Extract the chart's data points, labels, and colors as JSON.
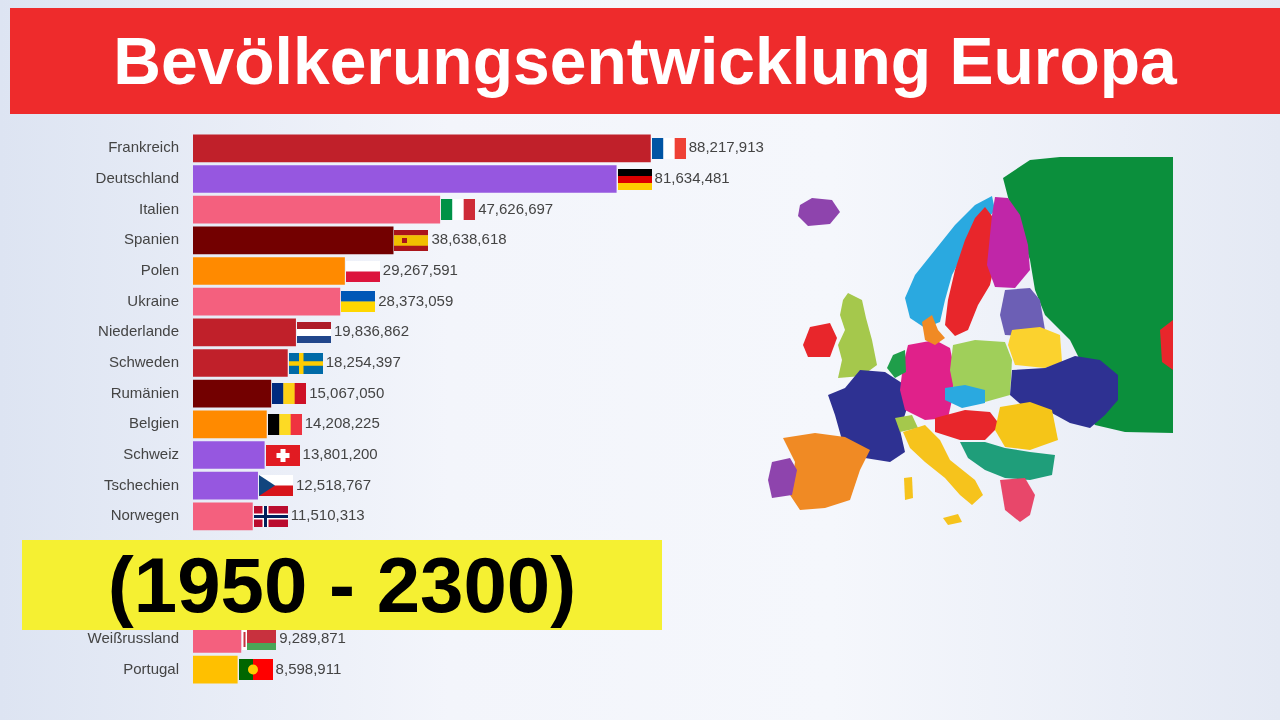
{
  "chart_data": {
    "type": "bar",
    "orientation": "horizontal",
    "title": "Bevölkerungsentwicklung Europa",
    "subtitle": "(1950 - 2300)",
    "categories": [
      "Frankreich",
      "Deutschland",
      "Italien",
      "Spanien",
      "Polen",
      "Ukraine",
      "Niederlande",
      "Schweden",
      "Rumänien",
      "Belgien",
      "Schweiz",
      "Tschechien",
      "Norwegen",
      null,
      null,
      null,
      "Weißrussland",
      "Portugal"
    ],
    "values": [
      88217913,
      81634481,
      47626697,
      38638618,
      29267591,
      28373059,
      19836862,
      18254397,
      15067050,
      14208225,
      13801200,
      12518767,
      11510313,
      null,
      null,
      null,
      9289871,
      8598911
    ],
    "value_labels": [
      "88,217,913",
      "81,634,481",
      "47,626,697",
      "38,638,618",
      "29,267,591",
      "28,373,059",
      "19,836,862",
      "18,254,397",
      "15,067,050",
      "14,208,225",
      "13,801,200",
      "12,518,767",
      "11,510,313",
      null,
      null,
      null,
      "9,289,871",
      "8,598,911"
    ],
    "colors": [
      "#c0202a",
      "#9657e0",
      "#f4607e",
      "#730000",
      "#ff8a00",
      "#f4607e",
      "#c0202a",
      "#c0202a",
      "#730000",
      "#ff8a00",
      "#9657e0",
      "#9657e0",
      "#f4607e",
      null,
      null,
      null,
      "#f4607e",
      "#ffc000"
    ],
    "tick_labels": "y"
  }
}
